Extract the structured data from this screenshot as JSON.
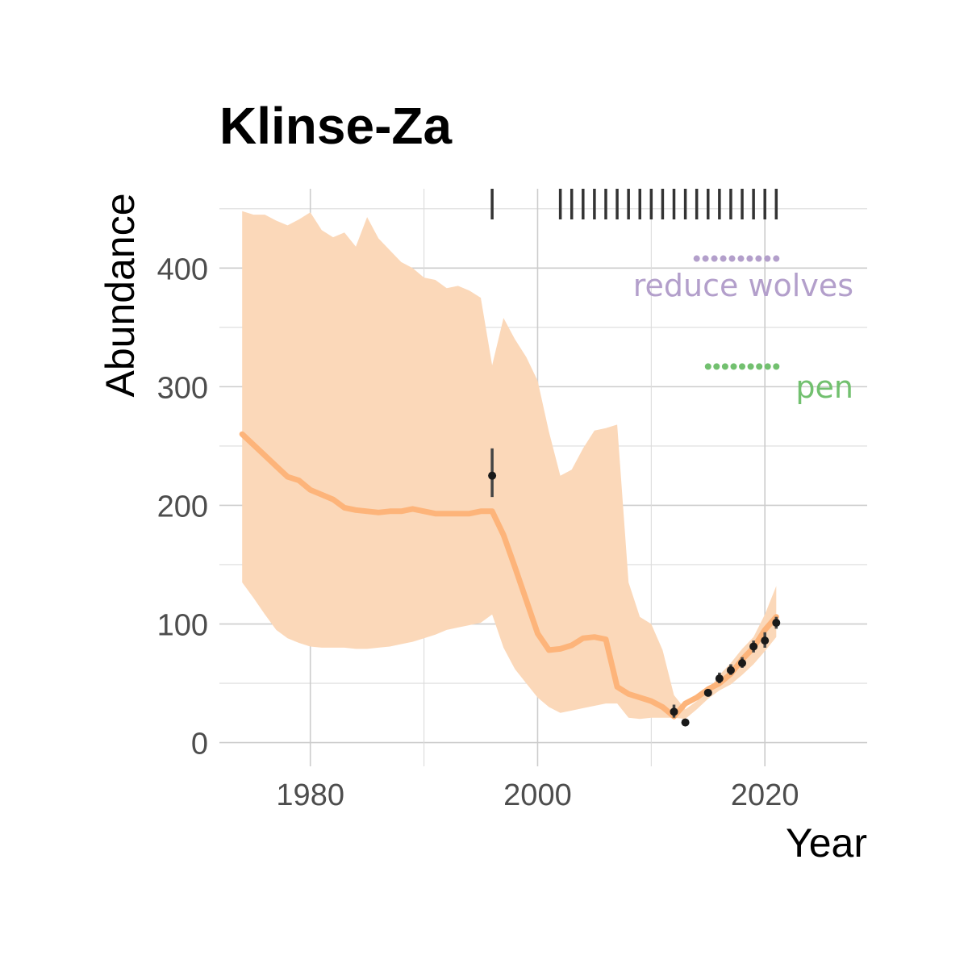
{
  "chart_data": {
    "type": "line",
    "title": "Klinse-Za",
    "xlabel": "Year",
    "ylabel": "Abundance",
    "xlim": [
      1972,
      2029
    ],
    "ylim": [
      -20,
      475
    ],
    "x_ticks": [
      1980,
      2000,
      2020
    ],
    "x_tick_labels": [
      "1980",
      "2000",
      "2020"
    ],
    "y_ticks": [
      0,
      100,
      200,
      300,
      400
    ],
    "y_tick_labels": [
      "0",
      "100",
      "200",
      "300",
      "400"
    ],
    "grid": true,
    "series": [
      {
        "kind": "line",
        "color": "#fdb47a",
        "x": [
          1974,
          1975,
          1976,
          1977,
          1978,
          1979,
          1980,
          1981,
          1982,
          1983,
          1984,
          1985,
          1986,
          1987,
          1988,
          1989,
          1990,
          1991,
          1992,
          1993,
          1994,
          1995,
          1996,
          1997,
          1998,
          1999,
          2000,
          2001,
          2002,
          2003,
          2004,
          2005,
          2006,
          2007,
          2008,
          2009,
          2010,
          2011,
          2012,
          2013,
          2014,
          2015,
          2016,
          2017,
          2018,
          2019,
          2020,
          2021
        ],
        "y": [
          260,
          251,
          242,
          233,
          224,
          221,
          213,
          209,
          205,
          198,
          196,
          195,
          194,
          195,
          195,
          197,
          195,
          193,
          193,
          193,
          193,
          195,
          195,
          175,
          148,
          120,
          92,
          78,
          79,
          82,
          88,
          89,
          87,
          47,
          41,
          38,
          35,
          30,
          22,
          33,
          38,
          45,
          50,
          58,
          70,
          80,
          95,
          106
        ]
      },
      {
        "kind": "band",
        "color": "#fbd8b9",
        "x": [
          1974,
          1975,
          1976,
          1977,
          1978,
          1979,
          1980,
          1981,
          1982,
          1983,
          1984,
          1985,
          1986,
          1987,
          1988,
          1989,
          1990,
          1991,
          1992,
          1993,
          1994,
          1995,
          1996,
          1997,
          1998,
          1999,
          2000,
          2001,
          2002,
          2003,
          2004,
          2005,
          2006,
          2007,
          2008,
          2009,
          2010,
          2011,
          2012,
          2013,
          2014,
          2015,
          2016,
          2017,
          2018,
          2019,
          2020,
          2021
        ],
        "lower": [
          135,
          122,
          108,
          95,
          88,
          84,
          81,
          80,
          80,
          80,
          79,
          79,
          80,
          81,
          83,
          85,
          88,
          91,
          95,
          97,
          99,
          101,
          108,
          80,
          62,
          50,
          38,
          30,
          25,
          27,
          29,
          31,
          33,
          33,
          21,
          20,
          21,
          21,
          21,
          20,
          28,
          37,
          44,
          49,
          57,
          66,
          77,
          89
        ],
        "upper": [
          448,
          445,
          445,
          440,
          436,
          441,
          447,
          432,
          426,
          430,
          418,
          443,
          425,
          415,
          405,
          400,
          392,
          390,
          383,
          385,
          381,
          375,
          318,
          358,
          340,
          325,
          305,
          262,
          225,
          230,
          248,
          263,
          265,
          268,
          135,
          106,
          100,
          78,
          40,
          28,
          35,
          44,
          57,
          67,
          79,
          89,
          108,
          132
        ]
      }
    ],
    "observations": {
      "color": "#1a1a1a",
      "x": [
        1996,
        2012,
        2013,
        2015,
        2016,
        2017,
        2018,
        2019,
        2020,
        2021
      ],
      "y": [
        225,
        26,
        17,
        42,
        54,
        61,
        67,
        81,
        86,
        101
      ],
      "err_low": [
        207,
        21,
        15,
        40,
        50,
        57,
        63,
        76,
        80,
        96
      ],
      "err_high": [
        248,
        32,
        19,
        45,
        59,
        66,
        72,
        86,
        93,
        106
      ]
    },
    "survey_rugs": {
      "color": "#333333",
      "years": [
        1996,
        2002,
        2003,
        2004,
        2005,
        2006,
        2007,
        2008,
        2009,
        2010,
        2011,
        2012,
        2013,
        2014,
        2015,
        2016,
        2017,
        2018,
        2019,
        2020,
        2021
      ]
    },
    "treatments": [
      {
        "label": "reduce wolves",
        "color": "#b39fcb",
        "years": [
          2014,
          2015,
          2016,
          2017,
          2018,
          2019,
          2020,
          2021
        ],
        "y": 408
      },
      {
        "label": "pen",
        "color": "#72c06f",
        "years": [
          2015,
          2016,
          2017,
          2018,
          2019,
          2020,
          2021
        ],
        "y": 317
      }
    ]
  }
}
